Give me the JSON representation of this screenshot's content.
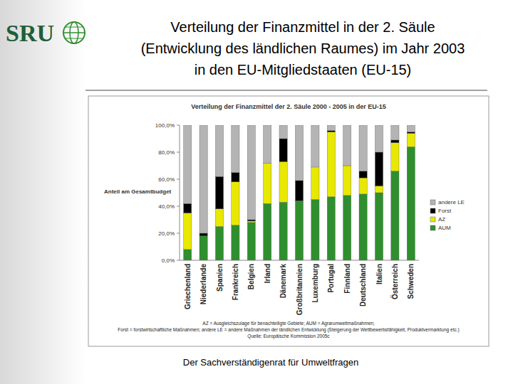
{
  "slide": {
    "logo": "SRU",
    "title_lines": [
      "Verteilung der Finanzmittel in der 2. Säule",
      "(Entwicklung des ländlichen Raumes) im Jahr 2003",
      "in den EU-Mitgliedstaaten (EU-15)"
    ],
    "notes": [
      "AZ = Ausgleichszulage für benachteiligte Gebiete; AUM = Agrarumweltmaßnahmen;",
      "Forst = forstwirtschaftliche Maßnahmen; andere LE = andere Maßnahmen der ländlichen Entwicklung (Steigerung der Wettbewerbsfähigkeit, Produktvermarktung etc.)",
      "Quelle: Europäische Kommission 2005c"
    ],
    "footer": "Der Sachverständigenrat für Umweltfragen"
  },
  "chart_data": {
    "type": "bar",
    "stacked": true,
    "title": "Verteilung der Finanzmittel der 2. Säule 2000 - 2005 in der EU-15",
    "ylabel": "Anteil am Gesamtbudget",
    "categories": [
      "Griechenland",
      "Niederlande",
      "Spanien",
      "Frankreich",
      "Belgien",
      "Irland",
      "Dänemark",
      "Großbritannien",
      "Luxemburg",
      "Portugal",
      "Finnland",
      "Deutschland",
      "Italien",
      "Österreich",
      "Schweden"
    ],
    "series": [
      {
        "name": "AUM",
        "color": "#2f8f2f",
        "values": [
          8,
          18,
          25,
          26,
          28,
          42,
          43,
          44,
          45,
          47,
          48,
          49,
          50,
          66,
          84
        ]
      },
      {
        "name": "AZ",
        "color": "#e8e800",
        "values": [
          27,
          0,
          13,
          32,
          1,
          30,
          30,
          0,
          24,
          48,
          22,
          12,
          5,
          21,
          10
        ]
      },
      {
        "name": "Forst",
        "color": "#000000",
        "values": [
          7,
          2,
          24,
          7,
          1,
          0,
          17,
          15,
          0,
          1,
          0,
          5,
          25,
          2,
          1
        ]
      },
      {
        "name": "andere LE",
        "color": "#b4b4b4",
        "values": [
          58,
          80,
          38,
          35,
          70,
          28,
          10,
          41,
          31,
          4,
          30,
          34,
          20,
          11,
          5
        ]
      }
    ],
    "ylim": [
      0,
      100
    ],
    "yticks": [
      {
        "value": 0,
        "label": "0,0%"
      },
      {
        "value": 20,
        "label": "20,0%"
      },
      {
        "value": 40,
        "label": "40,0%"
      },
      {
        "value": 60,
        "label": "60,0%"
      },
      {
        "value": 80,
        "label": "80,0%"
      },
      {
        "value": 100,
        "label": "100,0%"
      }
    ],
    "grid": false,
    "legend": "right"
  }
}
